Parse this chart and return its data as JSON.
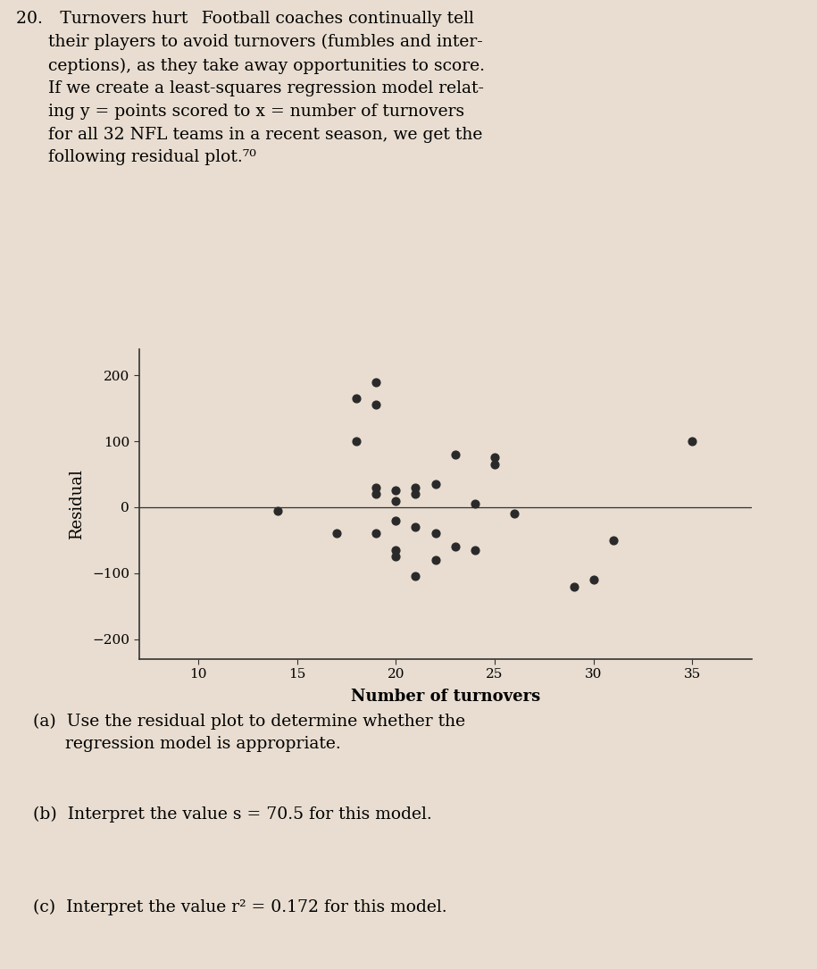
{
  "title_num": "20.",
  "title_bold": "Turnovers hurt",
  "title_text": " Football coaches continually tell\n    their players to avoid turnovers (fumbles and inter-\n    ceptions), as they take away opportunities to score.\n    If we create a least-squares regression model relat-\n    ing y = points scored to x = number of turnovers\n    for all 32 NFL teams in a recent season, we get the\n    following residual plot.",
  "superscript": "70",
  "xlabel": "Number of turnovers",
  "ylabel": "Residual",
  "xlim": [
    7,
    38
  ],
  "ylim": [
    -230,
    240
  ],
  "xticks": [
    10,
    15,
    20,
    25,
    30,
    35
  ],
  "yticks": [
    -200,
    -100,
    0,
    100,
    200
  ],
  "hline_y": 0,
  "scatter_x": [
    14,
    17,
    18,
    18,
    19,
    19,
    19,
    19,
    19,
    20,
    20,
    20,
    20,
    20,
    21,
    21,
    21,
    21,
    22,
    22,
    22,
    23,
    23,
    24,
    24,
    25,
    25,
    26,
    29,
    30,
    31,
    35
  ],
  "scatter_y": [
    -5,
    -40,
    100,
    165,
    190,
    155,
    30,
    20,
    -40,
    25,
    10,
    -20,
    -65,
    -75,
    30,
    20,
    -30,
    -105,
    35,
    -40,
    -80,
    80,
    -60,
    5,
    -65,
    75,
    65,
    -10,
    -120,
    -110,
    -50,
    100
  ],
  "dot_color": "#2a2a2a",
  "dot_size": 40,
  "bg_color": "#e8ddd0",
  "plot_bg_color": "#e8ddd0",
  "question_parts": [
    "(a)  Use the residual plot to determine whether the\n      regression model is appropriate.",
    "(b)  Interpret the value s = 70.5 for this model.",
    "(c)  Interpret the value r² = 0.172 for this model."
  ],
  "font_size_body": 13.5,
  "font_size_axis_label": 13,
  "font_size_tick": 11
}
